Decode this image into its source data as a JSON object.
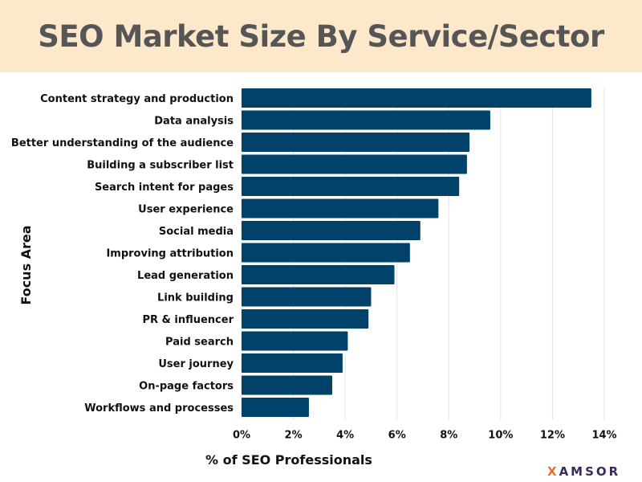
{
  "chart_data": {
    "type": "bar",
    "orientation": "horizontal",
    "title": "SEO Market Size By Service/Sector",
    "xlabel": "% of SEO Professionals",
    "ylabel": "Focus Area",
    "categories": [
      "Content strategy and production",
      "Data analysis",
      "Better understanding of the audience",
      "Building a subscriber list",
      "Search intent for pages",
      "User experience",
      "Social media",
      "Improving attribution",
      "Lead generation",
      "Link building",
      "PR & influencer",
      "Paid search",
      "User journey",
      "On-page factors",
      "Workflows and processes"
    ],
    "values": [
      13.5,
      9.6,
      8.8,
      8.7,
      8.4,
      7.6,
      6.9,
      6.5,
      5.9,
      5.0,
      4.9,
      4.1,
      3.9,
      3.5,
      2.6
    ],
    "xlim": [
      0,
      14
    ],
    "xticks": [
      0,
      2,
      4,
      6,
      8,
      10,
      12,
      14
    ],
    "xtick_labels": [
      "0%",
      "2%",
      "4%",
      "6%",
      "8%",
      "10%",
      "12%",
      "14%"
    ],
    "grid": "vertical",
    "bar_color": "#01426a",
    "title_background": "#fde8cb"
  },
  "logo": {
    "text": "XAMSOR",
    "first_letter": "X",
    "rest": "AMSOR",
    "colors": [
      "#f06a28",
      "#3b2a5a"
    ]
  }
}
